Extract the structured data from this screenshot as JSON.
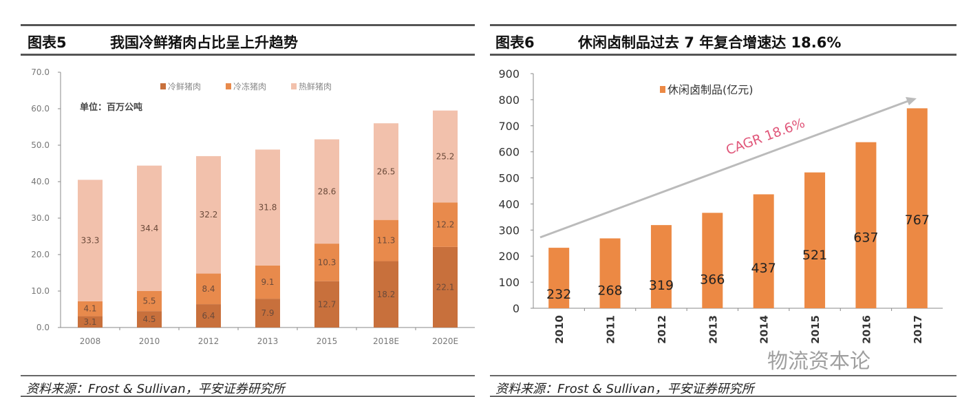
{
  "left": {
    "header_num": "图表5",
    "header_title": "我国冷鲜猪肉占比呈上升趋势",
    "source": "资料来源：Frost & Sullivan，平安证券研究所"
  },
  "right": {
    "header_num": "图表6",
    "header_title": "休闲卤制品过去 7 年复合增速达 18.6%",
    "source": "资料来源：Frost & Sullivan，平安证券研究所"
  },
  "watermark": "物流资本论",
  "chart_data": [
    {
      "type": "bar",
      "stacked": true,
      "title": "我国冷鲜猪肉占比呈上升趋势",
      "unit_note": "单位：百万公吨",
      "categories": [
        "2008",
        "2010",
        "2012",
        "2013",
        "2015",
        "2018E",
        "2020E"
      ],
      "series": [
        {
          "name": "冷鲜猪肉",
          "color": "#c8703c",
          "values": [
            3.1,
            4.5,
            6.4,
            7.9,
            12.7,
            18.2,
            22.1
          ]
        },
        {
          "name": "冷冻猪肉",
          "color": "#e88a4c",
          "values": [
            4.1,
            5.5,
            8.4,
            9.1,
            10.3,
            11.3,
            12.2
          ]
        },
        {
          "name": "热鲜猪肉",
          "color": "#f2c1ac",
          "values": [
            33.3,
            34.4,
            32.2,
            31.8,
            28.6,
            26.5,
            25.2
          ]
        }
      ],
      "ylim": [
        0,
        70
      ],
      "yticks": [
        "0.0",
        "10.0",
        "20.0",
        "30.0",
        "40.0",
        "50.0",
        "60.0",
        "70.0"
      ],
      "legend": "top"
    },
    {
      "type": "bar",
      "title": "休闲卤制品过去 7 年复合增速达 18.6%",
      "categories": [
        "2010",
        "2011",
        "2012",
        "2013",
        "2014",
        "2015",
        "2016",
        "2017"
      ],
      "series": [
        {
          "name": "休闲卤制品(亿元)",
          "color": "#ec8944",
          "values": [
            232,
            268,
            319,
            366,
            437,
            521,
            637,
            767
          ]
        }
      ],
      "ylim": [
        0,
        900
      ],
      "yticks": [
        "0",
        "100",
        "200",
        "300",
        "400",
        "500",
        "600",
        "700",
        "800",
        "900"
      ],
      "annotation": "CAGR 18.6%",
      "annotation_color": "#e0577a",
      "legend": "top"
    }
  ]
}
